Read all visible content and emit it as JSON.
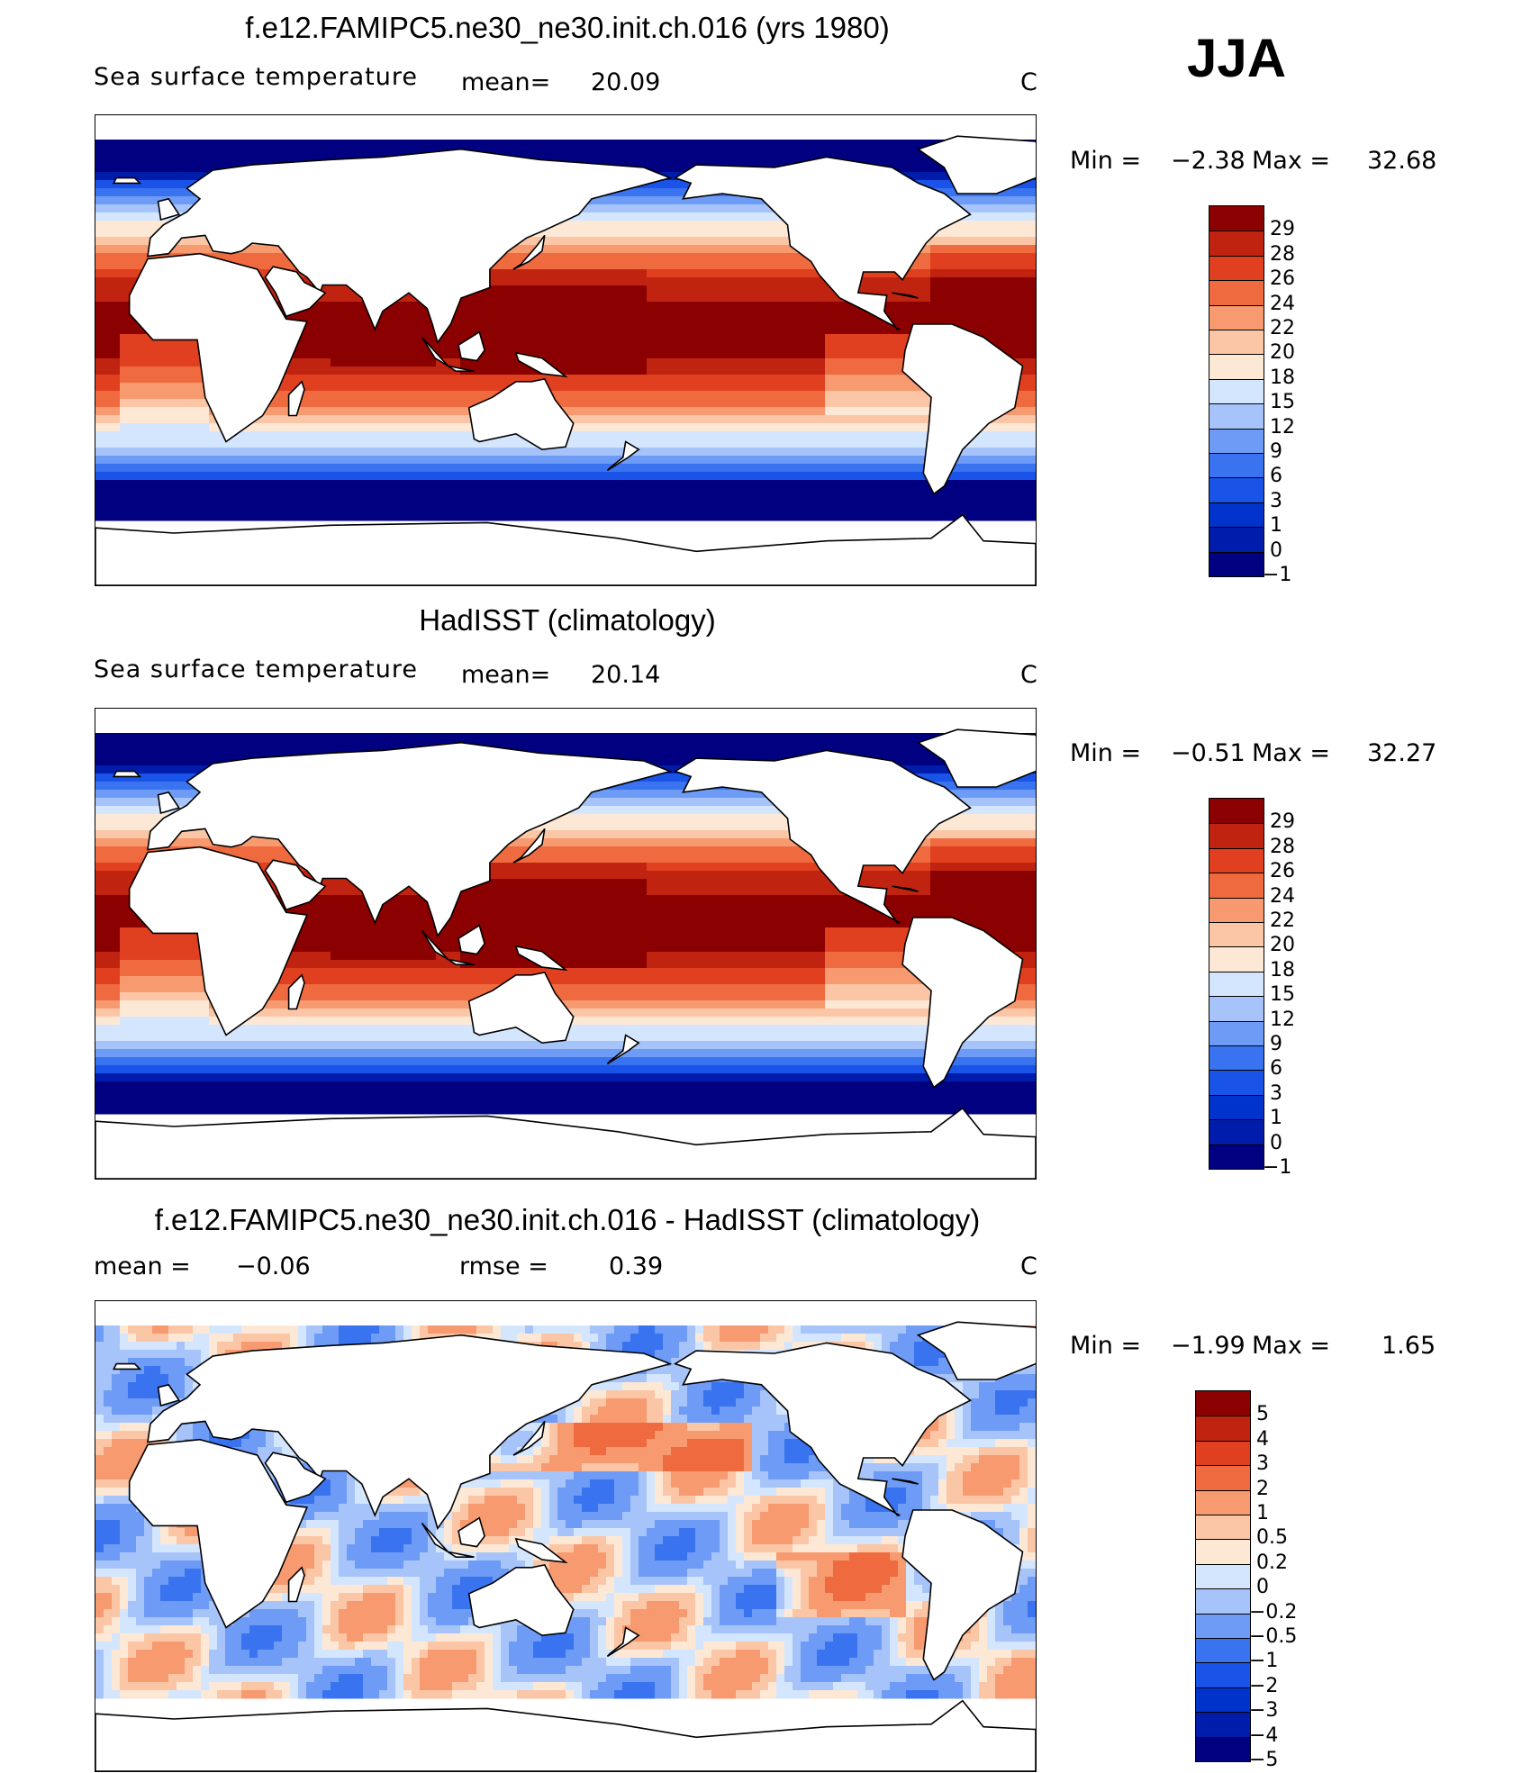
{
  "season": "JJA",
  "colors": {
    "sst": [
      "#000080",
      "#001caa",
      "#0033cc",
      "#1a53e8",
      "#3973f0",
      "#6e9bf5",
      "#a6c4fa",
      "#d4e6fd",
      "#fde8d6",
      "#fbc6a6",
      "#f79a70",
      "#f06a40",
      "#e0401f",
      "#c02410",
      "#8b0000"
    ],
    "diff": [
      "#000080",
      "#001caa",
      "#0033cc",
      "#1a53e8",
      "#3973f0",
      "#6e9bf5",
      "#a6c4fa",
      "#d4e6fd",
      "#fde8d6",
      "#fbc6a6",
      "#f79a70",
      "#f06a40",
      "#e0401f",
      "#c02410",
      "#8b0000"
    ]
  },
  "panels": [
    {
      "title": "f.e12.FAMIPC5.ne30_ne30.init.ch.016 (yrs 1980)",
      "left_label": "Sea surface temperature",
      "mean_label": "mean=",
      "mean_value": "20.09",
      "rmse_label": "",
      "rmse_value": "",
      "units": "C",
      "min_label": "Min =",
      "min_value": "−2.38",
      "max_label": "Max =",
      "max_value": "32.68",
      "scale": "sst",
      "levels": [
        "29",
        "28",
        "26",
        "24",
        "22",
        "20",
        "18",
        "15",
        "12",
        "9",
        "6",
        "3",
        "1",
        "0",
        "−1"
      ]
    },
    {
      "title": "HadISST (climatology)",
      "left_label": "Sea surface temperature",
      "mean_label": "mean=",
      "mean_value": "20.14",
      "rmse_label": "",
      "rmse_value": "",
      "units": "C",
      "min_label": "Min =",
      "min_value": "−0.51",
      "max_label": "Max =",
      "max_value": "32.27",
      "scale": "sst",
      "levels": [
        "29",
        "28",
        "26",
        "24",
        "22",
        "20",
        "18",
        "15",
        "12",
        "9",
        "6",
        "3",
        "1",
        "0",
        "−1"
      ]
    },
    {
      "title": "f.e12.FAMIPC5.ne30_ne30.init.ch.016 - HadISST (climatology)",
      "left_label": "",
      "mean_label": "mean =",
      "mean_value": "−0.06",
      "rmse_label": "rmse =",
      "rmse_value": "0.39",
      "units": "C",
      "min_label": "Min =",
      "min_value": "−1.99",
      "max_label": "Max =",
      "max_value": "1.65",
      "scale": "diff",
      "levels": [
        "5",
        "4",
        "3",
        "2",
        "1",
        "0.5",
        "0.2",
        "0",
        "−0.2",
        "−0.5",
        "−1",
        "−2",
        "−3",
        "−4",
        "−5"
      ]
    }
  ]
}
